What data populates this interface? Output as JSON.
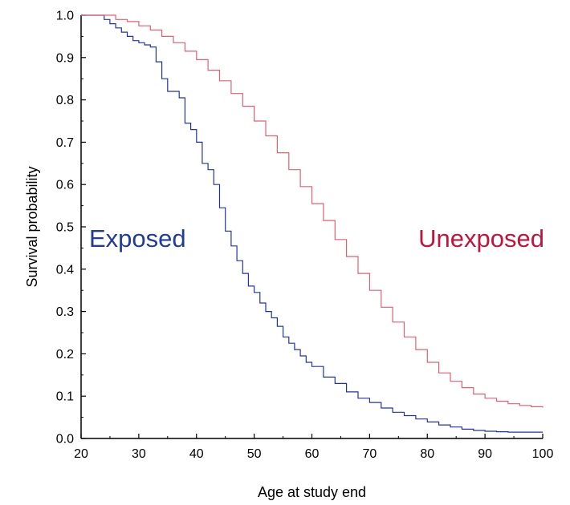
{
  "chart_data": {
    "type": "line",
    "step": true,
    "xlabel": "Age at study end",
    "ylabel": "Survival probability",
    "xlim": [
      20,
      100
    ],
    "ylim": [
      0,
      1
    ],
    "xticks": [
      20,
      30,
      40,
      50,
      60,
      70,
      80,
      90,
      100
    ],
    "yticks": [
      "0.0",
      "0.1",
      "0.2",
      "0.3",
      "0.4",
      "0.5",
      "0.6",
      "0.7",
      "0.8",
      "0.9",
      "1.0"
    ],
    "grid": false,
    "colors": {
      "exposed": "#2233aa",
      "unexposed": "#e06070",
      "exposed_label": "#1f3c9c",
      "unexposed_label": "#c0143c"
    },
    "series": [
      {
        "name": "Exposed",
        "x": [
          20,
          24,
          25,
          26,
          27,
          28,
          29,
          30,
          31,
          32,
          33,
          34,
          35,
          36,
          37,
          38,
          39,
          40,
          41,
          42,
          43,
          44,
          45,
          46,
          47,
          48,
          49,
          50,
          51,
          52,
          53,
          54,
          55,
          56,
          57,
          58,
          59,
          60,
          62,
          64,
          66,
          68,
          70,
          72,
          74,
          76,
          78,
          80,
          82,
          84,
          86,
          88,
          90,
          92,
          94,
          96,
          98,
          100
        ],
        "y": [
          1.0,
          0.99,
          0.98,
          0.97,
          0.96,
          0.95,
          0.94,
          0.935,
          0.93,
          0.925,
          0.89,
          0.85,
          0.82,
          0.82,
          0.805,
          0.745,
          0.73,
          0.7,
          0.65,
          0.635,
          0.6,
          0.545,
          0.49,
          0.455,
          0.42,
          0.39,
          0.36,
          0.345,
          0.32,
          0.3,
          0.285,
          0.265,
          0.24,
          0.225,
          0.21,
          0.195,
          0.18,
          0.17,
          0.145,
          0.13,
          0.11,
          0.095,
          0.085,
          0.072,
          0.062,
          0.054,
          0.046,
          0.039,
          0.032,
          0.027,
          0.022,
          0.019,
          0.017,
          0.016,
          0.015,
          0.015,
          0.015,
          0.015
        ]
      },
      {
        "name": "Unexposed",
        "x": [
          20,
          24,
          26,
          28,
          30,
          32,
          34,
          36,
          38,
          40,
          42,
          44,
          46,
          48,
          50,
          52,
          54,
          56,
          58,
          60,
          62,
          64,
          66,
          68,
          70,
          72,
          74,
          76,
          78,
          80,
          82,
          84,
          86,
          88,
          90,
          92,
          94,
          96,
          98,
          100
        ],
        "y": [
          1.0,
          1.0,
          0.99,
          0.985,
          0.975,
          0.965,
          0.95,
          0.935,
          0.915,
          0.895,
          0.87,
          0.845,
          0.815,
          0.785,
          0.75,
          0.715,
          0.675,
          0.635,
          0.595,
          0.555,
          0.515,
          0.47,
          0.43,
          0.39,
          0.35,
          0.31,
          0.275,
          0.24,
          0.21,
          0.18,
          0.155,
          0.135,
          0.12,
          0.105,
          0.095,
          0.088,
          0.082,
          0.078,
          0.075,
          0.073
        ]
      }
    ]
  }
}
